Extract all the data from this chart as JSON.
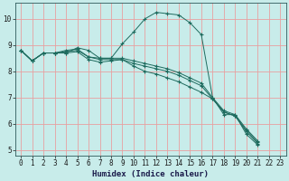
{
  "title": "",
  "xlabel": "Humidex (Indice chaleur)",
  "ylabel": "",
  "background_color": "#c8ecea",
  "line_color": "#1e6b5e",
  "grid_color": "#e8a0a0",
  "xlim": [
    -0.5,
    23.5
  ],
  "ylim": [
    4.8,
    10.6
  ],
  "yticks": [
    5,
    6,
    7,
    8,
    9,
    10
  ],
  "xticks": [
    0,
    1,
    2,
    3,
    4,
    5,
    6,
    7,
    8,
    9,
    10,
    11,
    12,
    13,
    14,
    15,
    16,
    17,
    18,
    19,
    20,
    21,
    22,
    23
  ],
  "lines": [
    {
      "x": [
        0,
        1,
        2,
        3,
        4,
        5,
        6,
        7,
        8,
        9,
        10,
        11,
        12,
        13,
        14,
        15,
        16,
        17,
        18,
        19,
        20,
        21,
        22,
        23
      ],
      "y": [
        8.8,
        8.4,
        8.7,
        8.7,
        8.7,
        8.9,
        8.8,
        8.5,
        8.5,
        9.05,
        9.5,
        10.0,
        10.25,
        10.2,
        10.15,
        9.85,
        9.4,
        7.0,
        6.35,
        6.35,
        5.6,
        5.2,
        null,
        null
      ]
    },
    {
      "x": [
        0,
        1,
        2,
        3,
        4,
        5,
        6,
        7,
        8,
        9,
        10,
        11,
        12,
        13,
        14,
        15,
        16,
        17,
        18,
        19,
        20,
        21,
        22,
        23
      ],
      "y": [
        8.8,
        8.4,
        8.7,
        8.7,
        8.75,
        8.8,
        8.55,
        8.45,
        8.45,
        8.45,
        8.3,
        8.2,
        8.1,
        8.0,
        7.85,
        7.65,
        7.45,
        6.95,
        6.45,
        6.3,
        5.75,
        5.3,
        null,
        null
      ]
    },
    {
      "x": [
        0,
        1,
        2,
        3,
        4,
        5,
        6,
        7,
        8,
        9,
        10,
        11,
        12,
        13,
        14,
        15,
        16,
        17,
        18,
        19,
        20,
        21,
        22,
        23
      ],
      "y": [
        8.8,
        8.4,
        8.7,
        8.7,
        8.7,
        8.75,
        8.45,
        8.35,
        8.4,
        8.45,
        8.2,
        8.0,
        7.9,
        7.75,
        7.6,
        7.4,
        7.2,
        6.95,
        6.45,
        6.3,
        5.7,
        5.25,
        null,
        null
      ]
    },
    {
      "x": [
        0,
        1,
        2,
        3,
        4,
        5,
        6,
        7,
        8,
        9,
        10,
        11,
        12,
        13,
        14,
        15,
        16,
        17,
        18,
        19,
        20,
        21,
        22,
        23
      ],
      "y": [
        8.8,
        8.4,
        8.7,
        8.7,
        8.8,
        8.85,
        8.55,
        8.5,
        8.5,
        8.5,
        8.4,
        8.3,
        8.2,
        8.1,
        7.95,
        7.75,
        7.55,
        7.0,
        6.5,
        6.35,
        5.8,
        5.35,
        null,
        null
      ]
    }
  ],
  "xlabel_fontsize": 6.5,
  "tick_fontsize": 5.5
}
